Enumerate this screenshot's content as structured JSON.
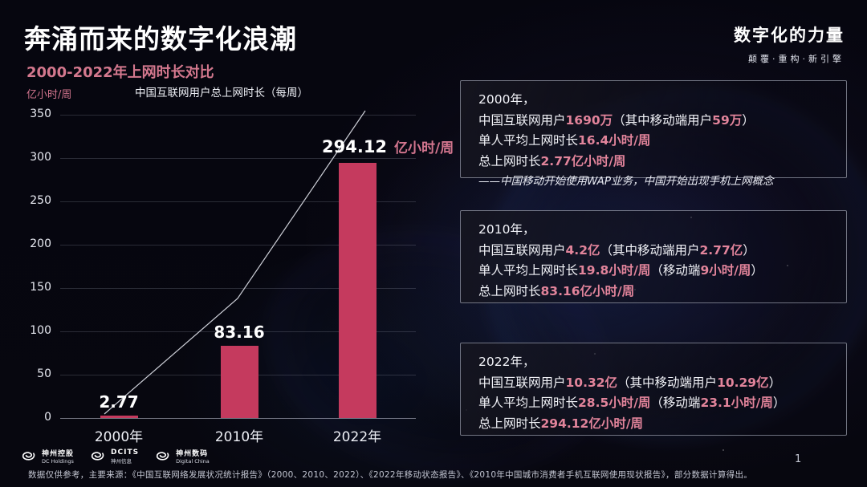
{
  "header": {
    "title": "奔涌而来的数字化浪潮",
    "subtitle": "2000-2022年上网时长对比",
    "brand_title": "数字化的力量",
    "brand_tagline": "颠覆·重构·新引擎"
  },
  "colors": {
    "bar": "#c53a5e",
    "accent_pink": "#e2849b",
    "unit_pink": "#d2758e",
    "subtitle_pink": "#d4788e",
    "trend_line": "rgba(240,242,250,0.85)"
  },
  "chart_data": {
    "type": "bar",
    "title": "中国互联网用户总上网时长（每周）",
    "unit_label": "亿小时/周",
    "categories": [
      "2000年",
      "2010年",
      "2022年"
    ],
    "values": [
      2.77,
      83.16,
      294.12
    ],
    "bar_labels": [
      "2.77",
      "83.16",
      "294.12"
    ],
    "last_label_suffix": "亿小时/周",
    "ylim": [
      0,
      350
    ],
    "yticks": [
      0,
      50,
      100,
      150,
      200,
      250,
      300,
      350
    ],
    "grid": true,
    "trend_line": true,
    "legend": "none"
  },
  "info_boxes": [
    {
      "year": "2000年，",
      "lines": [
        [
          {
            "t": "中国互联网用户"
          },
          {
            "t": "1690万",
            "hl": true
          },
          {
            "t": "（其中移动端用户"
          },
          {
            "t": "59万",
            "hl": true
          },
          {
            "t": "）"
          }
        ],
        [
          {
            "t": "单人平均上网时长"
          },
          {
            "t": "16.4小时/周",
            "hl": true
          }
        ],
        [
          {
            "t": "总上网时长"
          },
          {
            "t": "2.77亿小时/周",
            "hl": true
          }
        ]
      ],
      "note": "——中国移动开始使用WAP业务，中国开始出现手机上网概念"
    },
    {
      "year": "2010年，",
      "lines": [
        [
          {
            "t": "中国互联网用户"
          },
          {
            "t": "4.2亿",
            "hl": true
          },
          {
            "t": "（其中移动端用户"
          },
          {
            "t": "2.77亿",
            "hl": true
          },
          {
            "t": "）"
          }
        ],
        [
          {
            "t": "单人平均上网时长"
          },
          {
            "t": "19.8小时/周",
            "hl": true
          },
          {
            "t": "（移动端"
          },
          {
            "t": "9小时/周",
            "hl": true
          },
          {
            "t": "）"
          }
        ],
        [
          {
            "t": "总上网时长"
          },
          {
            "t": "83.16亿小时/周",
            "hl": true
          }
        ]
      ],
      "note": ""
    },
    {
      "year": "2022年，",
      "lines": [
        [
          {
            "t": "中国互联网用户"
          },
          {
            "t": "10.32亿",
            "hl": true
          },
          {
            "t": "（其中移动端用户"
          },
          {
            "t": "10.29亿",
            "hl": true
          },
          {
            "t": "）"
          }
        ],
        [
          {
            "t": "单人平均上网时长"
          },
          {
            "t": "28.5小时/周",
            "hl": true
          },
          {
            "t": "（移动端"
          },
          {
            "t": "23.1小时/周",
            "hl": true
          },
          {
            "t": "）"
          }
        ],
        [
          {
            "t": "总上网时长"
          },
          {
            "t": "294.12亿小时/周",
            "hl": true
          }
        ]
      ],
      "note": ""
    }
  ],
  "footer": {
    "logos": [
      {
        "line1": "神州控股",
        "line2": "DC Holdings"
      },
      {
        "line1": "DCITS",
        "line2": "神州信息"
      },
      {
        "line1": "神州数码",
        "line2": "Digital China"
      }
    ],
    "footnote": "数据仅供参考，主要来源：《中国互联网络发展状况统计报告》（2000、2010、2022）、《2022年移动状态报告》、《2010年中国城市消费者手机互联网使用现状报告》，部分数据计算得出。",
    "page_number": "1"
  }
}
